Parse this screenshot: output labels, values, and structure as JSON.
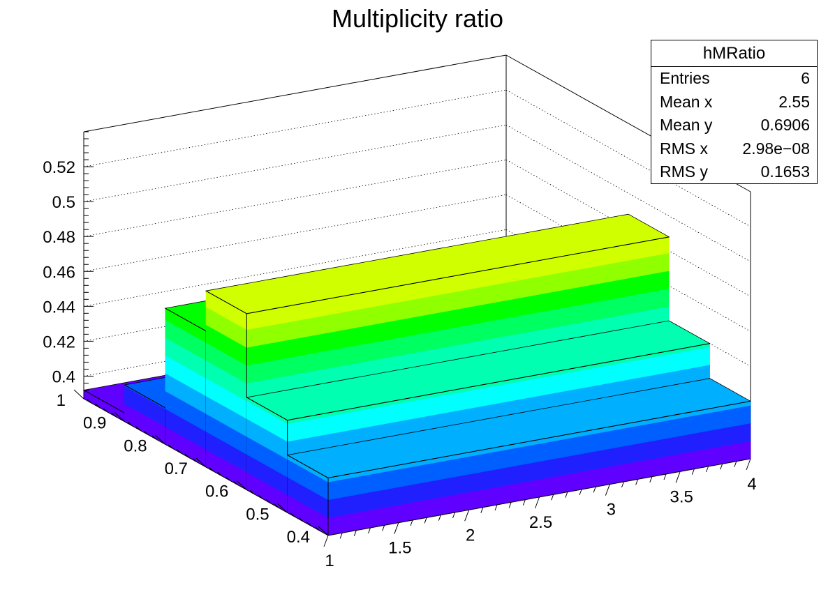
{
  "chart_data": {
    "type": "lego3d",
    "title": "Multiplicity ratio",
    "x_ticks": [
      "1",
      "1.5",
      "2",
      "2.5",
      "3",
      "3.5",
      "4"
    ],
    "y_ticks": [
      "0.4",
      "0.5",
      "0.6",
      "0.7",
      "0.8",
      "0.9",
      "1"
    ],
    "z_ticks": [
      "0.4",
      "0.42",
      "0.44",
      "0.46",
      "0.48",
      "0.5",
      "0.52"
    ],
    "xlim": [
      1,
      4
    ],
    "ylim": [
      0.4,
      1.0
    ],
    "zlim": [
      0.387,
      0.54
    ],
    "grid": true,
    "bins": [
      {
        "y_from": 0.9,
        "y_to": 1.0,
        "value": 0.392
      },
      {
        "y_from": 0.8,
        "y_to": 0.9,
        "value": 0.408
      },
      {
        "y_from": 0.7,
        "y_to": 0.8,
        "value": 0.465
      },
      {
        "y_from": 0.6,
        "y_to": 0.7,
        "value": 0.488
      },
      {
        "y_from": 0.5,
        "y_to": 0.6,
        "value": 0.44
      },
      {
        "y_from": 0.4,
        "y_to": 0.5,
        "value": 0.42
      }
    ],
    "palette": [
      "#6000ff",
      "#2020ff",
      "#0060ff",
      "#00b0ff",
      "#00ffff",
      "#00ffb0",
      "#00ff60",
      "#00ff00",
      "#90ff00",
      "#d0ff00",
      "#ffff00",
      "#ffc000",
      "#ff8000",
      "#ff4000",
      "#ff0000"
    ]
  },
  "stats_box": {
    "title": "hMRatio",
    "rows": [
      {
        "label": "Entries",
        "value": "6"
      },
      {
        "label": "Mean x",
        "value": "2.55"
      },
      {
        "label": "Mean y",
        "value": "0.6906"
      },
      {
        "label": "RMS x",
        "value": "2.98e−08"
      },
      {
        "label": "RMS y",
        "value": "0.1653"
      }
    ]
  }
}
